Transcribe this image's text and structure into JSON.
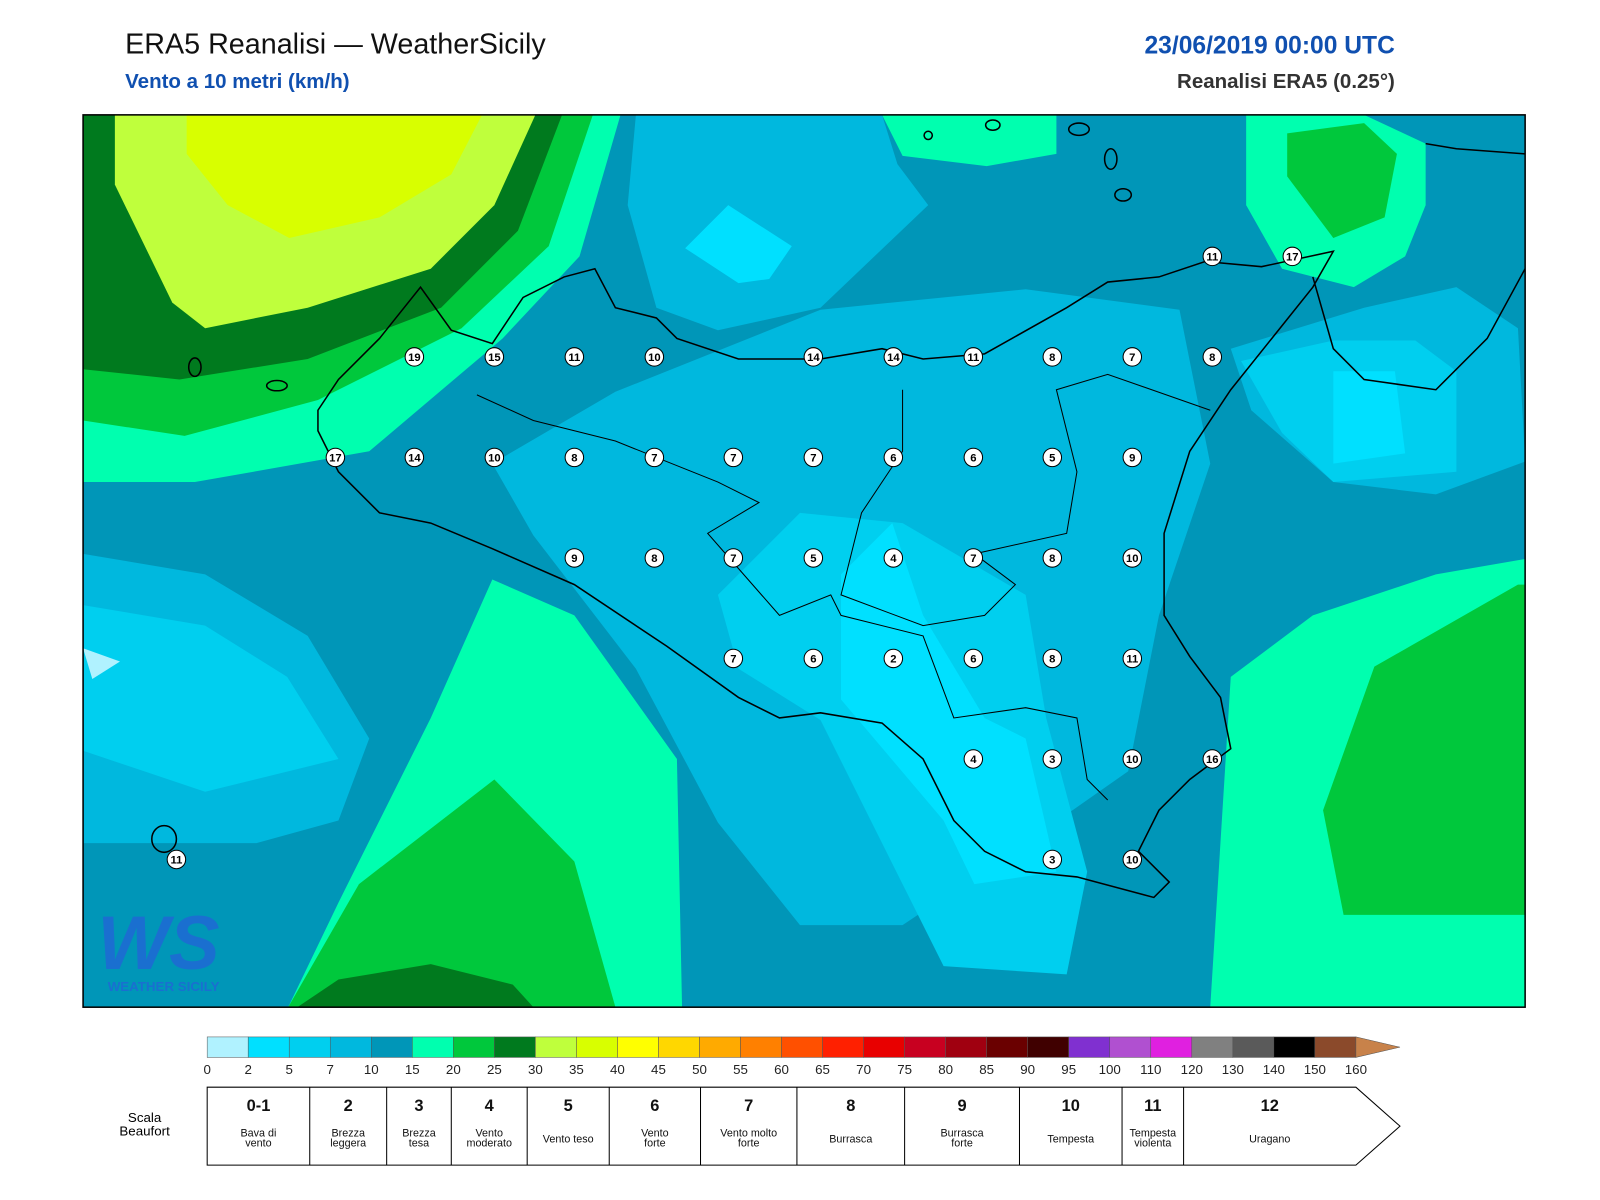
{
  "header": {
    "title": "ERA5 Reanalisi — WeatherSicily",
    "subtitle": "Vento a 10 metri (km/h)",
    "date": "23/06/2019 00:00 UTC",
    "source": "Reanalisi ERA5 (0.25°)"
  },
  "map": {
    "stations": [
      11,
      17,
      19,
      15,
      11,
      10,
      14,
      14,
      11,
      8,
      7,
      8,
      17,
      14,
      10,
      8,
      7,
      7,
      7,
      6,
      6,
      5,
      9,
      9,
      8,
      7,
      5,
      4,
      7,
      8,
      10,
      7,
      6,
      2,
      6,
      8,
      11,
      4,
      3,
      10,
      16,
      11,
      3,
      10
    ]
  },
  "logo": {
    "mark": "WS",
    "text": "WEATHER SICILY"
  },
  "colorbar": {
    "ticks": [
      0,
      2,
      5,
      7,
      10,
      15,
      20,
      25,
      30,
      35,
      40,
      45,
      50,
      55,
      60,
      65,
      70,
      75,
      80,
      85,
      90,
      95,
      100,
      110,
      120,
      130,
      140,
      150,
      160
    ],
    "colors": [
      "#b0f2ff",
      "#00e0ff",
      "#00cfef",
      "#00b8de",
      "#0096b8",
      "#00ffaf",
      "#00c83c",
      "#007a1e",
      "#bfff3c",
      "#d8ff00",
      "#ffff00",
      "#ffd700",
      "#ffaa00",
      "#ff8000",
      "#ff5000",
      "#ff2000",
      "#e80000",
      "#c80020",
      "#a00010",
      "#6a0000",
      "#400000",
      "#8030d0",
      "#b050d0",
      "#e020e0",
      "#808080",
      "#5a5a5a",
      "#000000",
      "#8b4a2b",
      "#c8824a"
    ]
  },
  "beaufort": {
    "label": "Scala Beaufort",
    "levels": [
      {
        "force": "0-1",
        "name": "Bava di vento"
      },
      {
        "force": "2",
        "name": "Brezza leggera"
      },
      {
        "force": "3",
        "name": "Brezza tesa"
      },
      {
        "force": "4",
        "name": "Vento moderato"
      },
      {
        "force": "5",
        "name": "Vento teso"
      },
      {
        "force": "6",
        "name": "Vento forte"
      },
      {
        "force": "7",
        "name": "Vento molto forte"
      },
      {
        "force": "8",
        "name": "Burrasca"
      },
      {
        "force": "9",
        "name": "Burrasca forte"
      },
      {
        "force": "10",
        "name": "Tempesta"
      },
      {
        "force": "11",
        "name": "Tempesta violenta"
      },
      {
        "force": "12",
        "name": "Uragano"
      }
    ]
  }
}
